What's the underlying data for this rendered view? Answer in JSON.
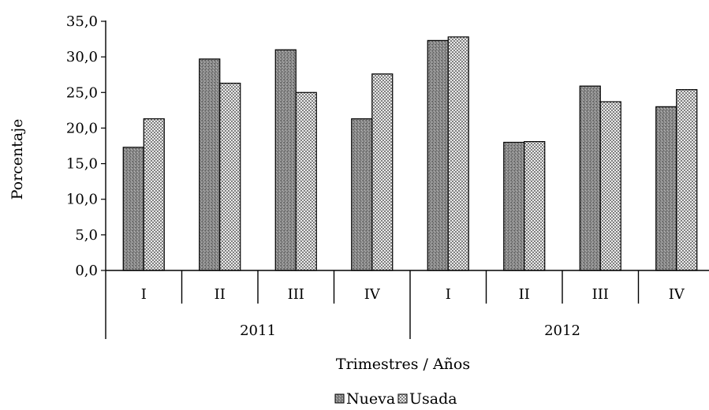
{
  "chart_data": {
    "type": "bar",
    "categories": [
      "I",
      "II",
      "III",
      "IV",
      "I",
      "II",
      "III",
      "IV"
    ],
    "groups": [
      {
        "label": "2011",
        "count": 4
      },
      {
        "label": "2012",
        "count": 4
      }
    ],
    "series": [
      {
        "name": "Nueva",
        "values": [
          17.3,
          29.7,
          31.0,
          21.3,
          32.3,
          18.0,
          25.9,
          23.0
        ]
      },
      {
        "name": "Usada",
        "values": [
          21.3,
          26.3,
          25.0,
          27.6,
          32.8,
          18.1,
          23.7,
          25.4
        ]
      }
    ],
    "ylim": [
      0,
      35
    ],
    "yticks": [
      "0,0",
      "5,0",
      "10,0",
      "15,0",
      "20,0",
      "25,0",
      "30,0",
      "35,0"
    ],
    "xlabel": "Trimestres / Años",
    "ylabel": "Porcentaje",
    "grid": false,
    "legend_position": "bottom",
    "colors": {
      "Nueva": "#8c8c8c",
      "Usada": "#ffffff"
    }
  }
}
